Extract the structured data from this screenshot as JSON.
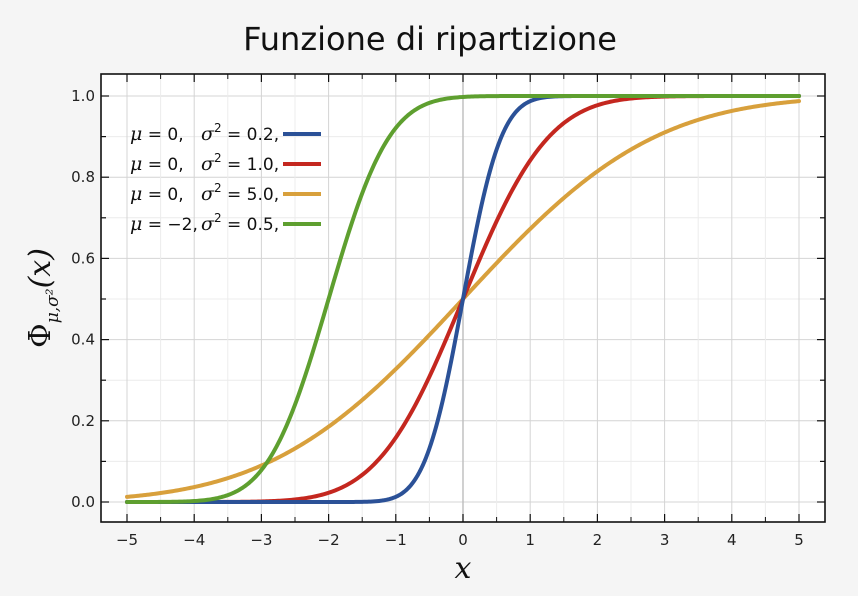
{
  "chart_data": {
    "type": "line",
    "title": "Funzione di ripartizione",
    "xlabel": "x",
    "ylabel": {
      "symbol": "Φ",
      "subscript": "μ,σ²",
      "argument": "(x)"
    },
    "xlim": [
      -5,
      5
    ],
    "ylim": [
      0,
      1
    ],
    "x_ticks": [
      -5,
      -4,
      -3,
      -2,
      -1,
      0,
      1,
      2,
      3,
      4,
      5
    ],
    "x_tick_labels": [
      "−5",
      "−4",
      "−3",
      "−2",
      "−1",
      "0",
      "1",
      "2",
      "3",
      "4",
      "5"
    ],
    "y_ticks": [
      0,
      0.2,
      0.4,
      0.6,
      0.8,
      1.0
    ],
    "y_tick_labels": [
      "0.0",
      "0.2",
      "0.4",
      "0.6",
      "0.8",
      "1.0"
    ],
    "grid": true,
    "legend_position": "top-left",
    "series": [
      {
        "mu_label": "μ",
        "mu_value": "0,",
        "sigma_label": "σ",
        "sigma_value": "0.2,",
        "mu": 0,
        "variance": 0.2,
        "color": "#2b5197"
      },
      {
        "mu_label": "μ",
        "mu_value": "0,",
        "sigma_label": "σ",
        "sigma_value": "1.0,",
        "mu": 0,
        "variance": 1.0,
        "color": "#c4271f"
      },
      {
        "mu_label": "μ",
        "mu_value": "0,",
        "sigma_label": "σ",
        "sigma_value": "5.0,",
        "mu": 0,
        "variance": 5.0,
        "color": "#d8a03c"
      },
      {
        "mu_label": "μ",
        "mu_value": "−2,",
        "sigma_label": "σ",
        "sigma_value": "0.5,",
        "mu": -2,
        "variance": 0.5,
        "color": "#5e9f2f"
      }
    ]
  }
}
